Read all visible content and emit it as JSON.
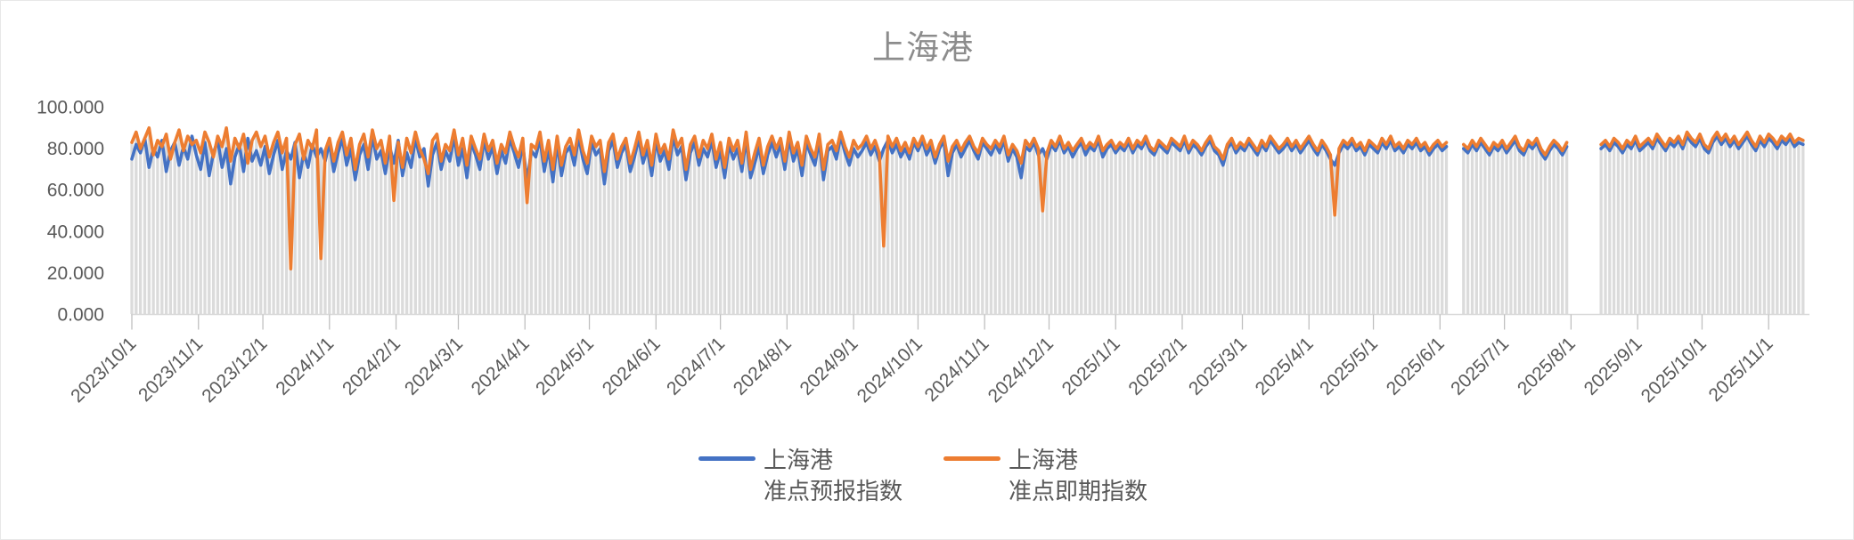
{
  "colors": {
    "series_forecast": "#4472C4",
    "series_spot": "#ED7D31",
    "title_text": "#8C8C8C",
    "axis_text": "#595959",
    "axis_line": "#D9D9D9",
    "tick_mark": "#C0C0C0",
    "drop_line": "#DBDBDB"
  },
  "chart_data": {
    "type": "line",
    "title": "上海港",
    "xlabel": "",
    "ylabel": "",
    "ylim": [
      0,
      100
    ],
    "grid": "off",
    "drop_lines": true,
    "legend_position": "bottom",
    "x_start": "2023/10/1",
    "x_step_days": 2,
    "x_end_approx": "2025/11/17",
    "data_gaps": [
      "2025/6/6 - 2025/6/10",
      "2025/8/1 - 2025/8/13"
    ],
    "y_ticks": [
      {
        "v": 100,
        "label": "100.000"
      },
      {
        "v": 80,
        "label": "80.000"
      },
      {
        "v": 60,
        "label": "60.000"
      },
      {
        "v": 40,
        "label": "40.000"
      },
      {
        "v": 20,
        "label": "20.000"
      },
      {
        "v": 0,
        "label": "0.000"
      }
    ],
    "x_axis_ticks": [
      "2023/10/1",
      "2023/11/1",
      "2023/12/1",
      "2024/1/1",
      "2024/2/1",
      "2024/3/1",
      "2024/4/1",
      "2024/5/1",
      "2024/6/1",
      "2024/7/1",
      "2024/8/1",
      "2024/9/1",
      "2024/10/1",
      "2024/11/1",
      "2024/12/1",
      "2025/1/1",
      "2025/2/1",
      "2025/3/1",
      "2025/4/1",
      "2025/5/1",
      "2025/6/1",
      "2025/7/1",
      "2025/8/1",
      "2025/9/1",
      "2025/10/1",
      "2025/11/1"
    ],
    "series": [
      {
        "name": "上海港 准点预报指数",
        "legend_line1": "上海港",
        "legend_line2": "准点预报指数",
        "color": "#4472C4",
        "values": [
          75,
          82,
          78,
          85,
          71,
          80,
          76,
          84,
          69,
          79,
          83,
          72,
          81,
          75,
          86,
          77,
          70,
          83,
          67,
          78,
          84,
          71,
          80,
          63,
          76,
          82,
          69,
          85,
          74,
          79,
          72,
          81,
          68,
          77,
          84,
          70,
          79,
          75,
          83,
          66,
          78,
          71,
          82,
          76,
          80,
          74,
          83,
          69,
          78,
          85,
          72,
          80,
          65,
          77,
          82,
          70,
          86,
          75,
          79,
          68,
          81,
          73,
          84,
          67,
          78,
          71,
          85,
          76,
          80,
          62,
          77,
          83,
          70,
          79,
          74,
          86,
          72,
          80,
          66,
          83,
          77,
          70,
          84,
          75,
          81,
          68,
          79,
          73,
          85,
          78,
          71,
          82,
          64,
          79,
          76,
          85,
          69,
          80,
          64,
          83,
          67,
          78,
          81,
          72,
          86,
          75,
          68,
          83,
          77,
          80,
          63,
          79,
          84,
          71,
          78,
          82,
          69,
          76,
          85,
          73,
          80,
          67,
          84,
          74,
          79,
          70,
          86,
          77,
          81,
          65,
          78,
          83,
          72,
          80,
          76,
          84,
          71,
          79,
          66,
          82,
          75,
          80,
          69,
          85,
          66,
          73,
          81,
          68,
          77,
          83,
          76,
          82,
          70,
          85,
          74,
          80,
          67,
          83,
          77,
          72,
          84,
          65,
          79,
          81,
          75,
          86,
          78,
          72,
          80,
          76,
          79,
          83,
          77,
          81,
          74,
          80,
          84,
          78,
          82,
          76,
          80,
          75,
          83,
          79,
          84,
          77,
          81,
          73,
          80,
          84,
          67,
          78,
          82,
          76,
          80,
          84,
          79,
          75,
          83,
          80,
          77,
          82,
          78,
          84,
          74,
          80,
          76,
          66,
          81,
          79,
          83,
          77,
          80,
          75,
          82,
          79,
          84,
          78,
          81,
          76,
          80,
          83,
          77,
          81,
          79,
          84,
          76,
          80,
          82,
          78,
          81,
          79,
          83,
          78,
          82,
          80,
          84,
          79,
          77,
          82,
          80,
          78,
          83,
          81,
          79,
          84,
          78,
          82,
          80,
          77,
          81,
          84,
          79,
          77,
          72,
          80,
          83,
          78,
          81,
          79,
          83,
          80,
          77,
          82,
          79,
          84,
          81,
          78,
          80,
          83,
          79,
          82,
          78,
          81,
          84,
          80,
          77,
          82,
          79,
          75,
          72,
          78,
          82,
          80,
          83,
          79,
          81,
          77,
          82,
          80,
          78,
          83,
          80,
          84,
          79,
          81,
          78,
          82,
          80,
          83,
          79,
          81,
          77,
          80,
          82,
          79,
          81,
          null,
          null,
          null,
          80,
          78,
          82,
          79,
          83,
          80,
          77,
          81,
          79,
          82,
          78,
          81,
          84,
          79,
          77,
          82,
          80,
          83,
          78,
          75,
          79,
          82,
          80,
          77,
          81,
          null,
          null,
          null,
          null,
          null,
          null,
          null,
          80,
          82,
          79,
          83,
          81,
          78,
          82,
          80,
          84,
          79,
          81,
          83,
          80,
          85,
          82,
          79,
          83,
          81,
          84,
          80,
          86,
          83,
          81,
          85,
          80,
          78,
          83,
          86,
          82,
          85,
          81,
          84,
          80,
          83,
          86,
          82,
          79,
          84,
          81,
          85,
          83,
          80,
          84,
          82,
          85,
          81,
          83,
          82
        ]
      },
      {
        "name": "上海港 准点即期指数",
        "legend_line1": "上海港",
        "legend_line2": "准点即期指数",
        "color": "#ED7D31",
        "values": [
          83,
          88,
          80,
          85,
          90,
          77,
          84,
          81,
          87,
          75,
          83,
          89,
          79,
          86,
          82,
          84,
          78,
          88,
          83,
          76,
          86,
          81,
          90,
          74,
          85,
          80,
          87,
          73,
          84,
          88,
          81,
          86,
          76,
          83,
          88,
          78,
          85,
          22,
          82,
          87,
          75,
          84,
          80,
          89,
          27,
          79,
          85,
          74,
          83,
          88,
          77,
          85,
          70,
          82,
          87,
          76,
          89,
          80,
          84,
          73,
          86,
          55,
          83,
          71,
          85,
          78,
          88,
          80,
          75,
          68,
          84,
          87,
          74,
          82,
          79,
          89,
          77,
          85,
          72,
          86,
          80,
          75,
          87,
          79,
          84,
          73,
          82,
          78,
          88,
          81,
          76,
          85,
          54,
          82,
          80,
          88,
          74,
          84,
          70,
          86,
          72,
          81,
          85,
          77,
          89,
          79,
          73,
          86,
          81,
          84,
          69,
          83,
          87,
          75,
          81,
          85,
          73,
          80,
          88,
          77,
          84,
          72,
          87,
          78,
          82,
          75,
          89,
          81,
          85,
          70,
          82,
          86,
          76,
          84,
          80,
          87,
          75,
          83,
          71,
          85,
          79,
          84,
          73,
          88,
          70,
          78,
          85,
          72,
          81,
          86,
          80,
          85,
          74,
          88,
          78,
          83,
          72,
          86,
          80,
          76,
          87,
          70,
          82,
          84,
          79,
          88,
          81,
          76,
          84,
          80,
          82,
          86,
          80,
          84,
          78,
          33,
          86,
          81,
          85,
          79,
          83,
          78,
          85,
          81,
          86,
          80,
          84,
          76,
          82,
          86,
          74,
          81,
          84,
          79,
          83,
          86,
          81,
          78,
          85,
          82,
          80,
          84,
          81,
          86,
          77,
          82,
          79,
          73,
          84,
          81,
          85,
          80,
          50,
          78,
          84,
          81,
          86,
          80,
          83,
          79,
          82,
          85,
          80,
          83,
          81,
          86,
          79,
          82,
          84,
          80,
          83,
          81,
          85,
          80,
          84,
          82,
          86,
          81,
          79,
          84,
          82,
          80,
          85,
          83,
          81,
          86,
          80,
          84,
          82,
          79,
          83,
          86,
          81,
          79,
          75,
          82,
          85,
          80,
          83,
          81,
          85,
          82,
          79,
          84,
          81,
          86,
          83,
          80,
          82,
          85,
          81,
          84,
          80,
          83,
          86,
          82,
          79,
          84,
          81,
          77,
          48,
          80,
          84,
          82,
          85,
          81,
          83,
          79,
          84,
          82,
          80,
          85,
          82,
          86,
          81,
          83,
          80,
          84,
          82,
          85,
          81,
          83,
          79,
          82,
          84,
          81,
          83,
          null,
          null,
          null,
          82,
          80,
          84,
          81,
          85,
          82,
          79,
          83,
          81,
          84,
          80,
          83,
          86,
          81,
          79,
          84,
          82,
          85,
          80,
          77,
          81,
          84,
          82,
          79,
          83,
          null,
          null,
          null,
          null,
          null,
          null,
          null,
          82,
          84,
          81,
          85,
          83,
          80,
          84,
          82,
          86,
          81,
          83,
          85,
          82,
          87,
          84,
          81,
          85,
          83,
          86,
          82,
          88,
          85,
          83,
          87,
          82,
          80,
          85,
          88,
          84,
          87,
          83,
          86,
          82,
          85,
          88,
          84,
          81,
          86,
          83,
          87,
          85,
          82,
          86,
          84,
          87,
          83,
          85,
          84
        ]
      }
    ]
  }
}
